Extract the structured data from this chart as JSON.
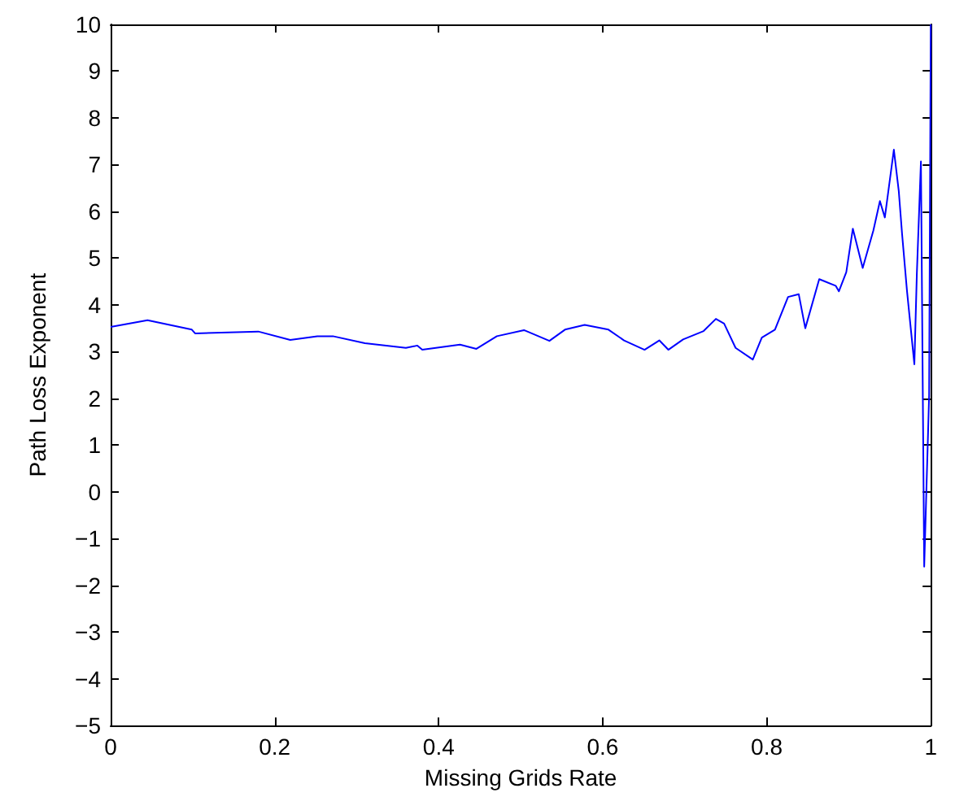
{
  "chart_data": {
    "type": "line",
    "xlabel": "Missing Grids Rate",
    "ylabel": "Path Loss Exponent",
    "xlim": [
      0,
      1
    ],
    "xticks": [
      0,
      0.2,
      0.4,
      0.6,
      0.8,
      1
    ],
    "ylim": [
      -5,
      10
    ],
    "yticks": [
      {
        "value": -5,
        "label": "−5"
      },
      {
        "value": -4,
        "label": "−4"
      },
      {
        "value": -3,
        "label": "−3"
      },
      {
        "value": -2,
        "label": "−2"
      },
      {
        "value": -1,
        "label": "−1"
      },
      0,
      1,
      2,
      3,
      4,
      5,
      6,
      7,
      8,
      9,
      10
    ],
    "grid": false,
    "marker": "none",
    "line_style": "solid",
    "series": [
      {
        "color": "#0000ff",
        "x": [
          0,
          0.045,
          0.099,
          0.103,
          0.18,
          0.219,
          0.252,
          0.271,
          0.31,
          0.36,
          0.374,
          0.38,
          0.426,
          0.446,
          0.471,
          0.504,
          0.535,
          0.554,
          0.578,
          0.607,
          0.626,
          0.651,
          0.669,
          0.68,
          0.698,
          0.723,
          0.738,
          0.748,
          0.762,
          0.783,
          0.794,
          0.81,
          0.826,
          0.839,
          0.847,
          0.864,
          0.884,
          0.888,
          0.897,
          0.905,
          0.917,
          0.93,
          0.938,
          0.944,
          0.955,
          0.961,
          0.965,
          0.971,
          0.98,
          0.983,
          0.988,
          0.992,
          0.998,
          1
        ],
        "values": [
          3.53,
          3.67,
          3.47,
          3.39,
          3.43,
          3.25,
          3.33,
          3.33,
          3.18,
          3.08,
          3.13,
          3.04,
          3.15,
          3.06,
          3.33,
          3.46,
          3.23,
          3.47,
          3.57,
          3.47,
          3.24,
          3.04,
          3.24,
          3.04,
          3.26,
          3.44,
          3.7,
          3.6,
          3.08,
          2.83,
          3.3,
          3.47,
          4.17,
          4.23,
          3.5,
          4.55,
          4.41,
          4.29,
          4.7,
          5.63,
          4.79,
          5.59,
          6.22,
          5.87,
          7.32,
          6.43,
          5.52,
          4.3,
          2.73,
          4.65,
          7.07,
          -1.6,
          2.06,
          10
        ]
      }
    ]
  }
}
